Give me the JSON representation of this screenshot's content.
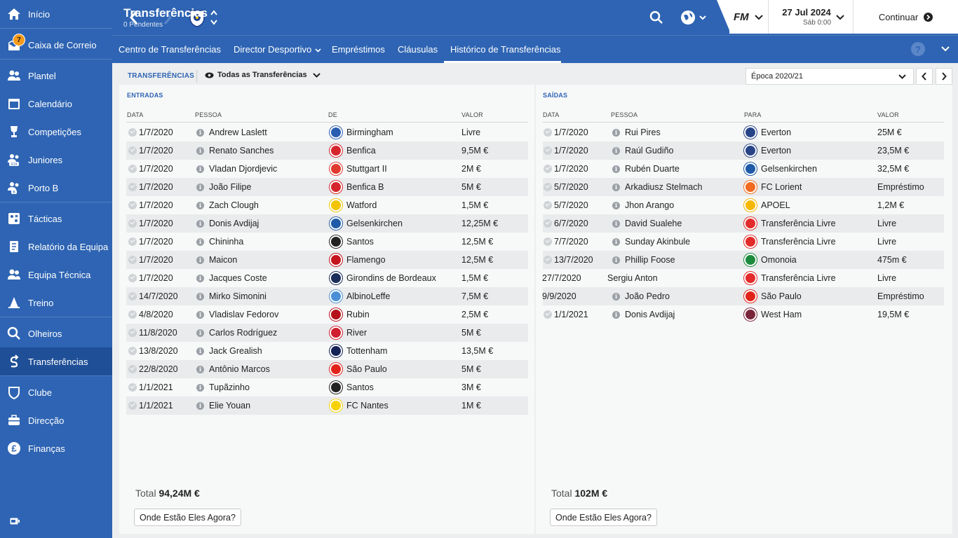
{
  "sidebar": {
    "items": [
      {
        "label": "Início",
        "icon": "home-icon"
      },
      {
        "label": "Caixa de Correio",
        "icon": "inbox-icon",
        "badge": "7"
      },
      {
        "label": "Plantel",
        "icon": "squad-icon"
      },
      {
        "label": "Calendário",
        "icon": "calendar-icon"
      },
      {
        "label": "Competições",
        "icon": "trophy-icon"
      },
      {
        "label": "Juniores",
        "icon": "youth-icon"
      },
      {
        "label": "Porto B",
        "icon": "reserve-team-icon"
      },
      {
        "label": "Tácticas",
        "icon": "tactics-icon"
      },
      {
        "label": "Relatório da Equipa",
        "icon": "report-icon"
      },
      {
        "label": "Equipa Técnica",
        "icon": "staff-icon"
      },
      {
        "label": "Treino",
        "icon": "training-icon"
      },
      {
        "label": "Olheiros",
        "icon": "scouting-icon"
      },
      {
        "label": "Transferências",
        "icon": "transfers-icon",
        "active": true
      },
      {
        "label": "Clube",
        "icon": "club-icon"
      },
      {
        "label": "Direcção",
        "icon": "board-icon"
      },
      {
        "label": "Finanças",
        "icon": "finances-icon"
      }
    ]
  },
  "header": {
    "title": "Transferências",
    "subtitle": "0 Pendentes",
    "fm_logo": "FM",
    "date": "27 Jul 2024",
    "time": "Sáb 0:00",
    "continue_label": "Continuar"
  },
  "tabs": [
    {
      "label": "Centro de Transferências"
    },
    {
      "label": "Director Desportivo"
    },
    {
      "label": "Empréstimos"
    },
    {
      "label": "Cláusulas"
    },
    {
      "label": "Histórico de Transferências",
      "active": true
    }
  ],
  "toolbar": {
    "section_label": "TRANSFERÊNCIAS",
    "filter_label": "Todas as Transferências",
    "season": "Época 2020/21"
  },
  "incoming": {
    "title": "ENTRADAS",
    "columns": [
      "DATA",
      "PESSOA",
      "DE",
      "VALOR"
    ],
    "rows": [
      {
        "date": "1/7/2020",
        "person": "Andrew Laslett",
        "club": "Birmingham",
        "value": "Livre",
        "crest": "#2a5db0"
      },
      {
        "date": "1/7/2020",
        "person": "Renato Sanches",
        "club": "Benfica",
        "value": "9,5M €",
        "crest": "#d6262d"
      },
      {
        "date": "1/7/2020",
        "person": "Vladan Djordjevic",
        "club": "Stuttgart II",
        "value": "2M €",
        "crest": "#e03a2e"
      },
      {
        "date": "1/7/2020",
        "person": "João Filipe",
        "club": "Benfica B",
        "value": "5M €",
        "crest": "#d6262d"
      },
      {
        "date": "1/7/2020",
        "person": "Zach Clough",
        "club": "Watford",
        "value": "1,5M €",
        "crest": "#f2c500"
      },
      {
        "date": "1/7/2020",
        "person": "Donis Avdijaj",
        "club": "Gelsenkirchen",
        "value": "12,25M €",
        "crest": "#1e5aa8"
      },
      {
        "date": "1/7/2020",
        "person": "Chininha",
        "club": "Santos",
        "value": "12,5M €",
        "crest": "#222222"
      },
      {
        "date": "1/7/2020",
        "person": "Maicon",
        "club": "Flamengo",
        "value": "12,5M €",
        "crest": "#c4151c"
      },
      {
        "date": "1/7/2020",
        "person": "Jacques Coste",
        "club": "Girondins de Bordeaux",
        "value": "1,5M €",
        "crest": "#1b2d5a"
      },
      {
        "date": "14/7/2020",
        "person": "Mirko Simonini",
        "club": "AlbinoLeffe",
        "value": "7,5M €",
        "crest": "#4a90d9"
      },
      {
        "date": "4/8/2020",
        "person": "Vladislav Fedorov",
        "club": "Rubin",
        "value": "2,5M €",
        "crest": "#b5121b"
      },
      {
        "date": "11/8/2020",
        "person": "Carlos Rodríguez",
        "club": "River",
        "value": "5M €",
        "crest": "#d01f2e"
      },
      {
        "date": "13/8/2020",
        "person": "Jack Grealish",
        "club": "Tottenham",
        "value": "13,5M €",
        "crest": "#132257"
      },
      {
        "date": "22/8/2020",
        "person": "Antônio Marcos",
        "club": "São Paulo",
        "value": "5M €",
        "crest": "#e2231a"
      },
      {
        "date": "1/1/2021",
        "person": "Tupãzinho",
        "club": "Santos",
        "value": "3M €",
        "crest": "#222222"
      },
      {
        "date": "1/1/2021",
        "person": "Elie Youan",
        "club": "FC Nantes",
        "value": "1M €",
        "crest": "#f7d200"
      }
    ],
    "total_label": "Total",
    "total_value": "94,24M €",
    "where_button": "Onde Estão Eles Agora?"
  },
  "outgoing": {
    "title": "SAÍDAS",
    "columns": [
      "DATA",
      "PESSOA",
      "PARA",
      "VALOR"
    ],
    "rows": [
      {
        "date": "1/7/2020",
        "person": "Rui Pires",
        "club": "Everton",
        "value": "25M €",
        "crest": "#274488",
        "check": true,
        "info": true
      },
      {
        "date": "1/7/2020",
        "person": "Raúl Gudiño",
        "club": "Everton",
        "value": "23,5M €",
        "crest": "#274488",
        "check": true,
        "info": true
      },
      {
        "date": "1/7/2020",
        "person": "Rubén Duarte",
        "club": "Gelsenkirchen",
        "value": "32,5M €",
        "crest": "#1e5aa8",
        "check": true,
        "info": true
      },
      {
        "date": "5/7/2020",
        "person": "Arkadiusz Stelmach",
        "club": "FC Lorient",
        "value": "Empréstimo",
        "crest": "#f26b21",
        "check": true,
        "info": true
      },
      {
        "date": "5/7/2020",
        "person": "Jhon Arango",
        "club": "APOEL",
        "value": "1,2M €",
        "crest": "#f5b800",
        "check": true,
        "info": true
      },
      {
        "date": "6/7/2020",
        "person": "David Sualehe",
        "club": "Transferência Livre",
        "value": "Livre",
        "crest": "#e32b2b",
        "check": true,
        "info": true
      },
      {
        "date": "7/7/2020",
        "person": "Sunday Akinbule",
        "club": "Transferência Livre",
        "value": "Livre",
        "crest": "#e32b2b",
        "check": true,
        "info": true
      },
      {
        "date": "13/7/2020",
        "person": "Phillip Foose",
        "club": "Omonoia",
        "value": "475m €",
        "crest": "#1c8a3c",
        "check": true,
        "info": true
      },
      {
        "date": "27/7/2020",
        "person": "Sergiu Anton",
        "club": "Transferência Livre",
        "value": "Livre",
        "crest": "#e32b2b",
        "check": false,
        "info": false
      },
      {
        "date": "9/9/2020",
        "person": "João Pedro",
        "club": "São Paulo",
        "value": "Empréstimo",
        "crest": "#e2231a",
        "check": false,
        "info": true
      },
      {
        "date": "1/1/2021",
        "person": "Donis Avdijaj",
        "club": "West Ham",
        "value": "19,5M €",
        "crest": "#7a263a",
        "check": true,
        "info": true
      }
    ],
    "total_label": "Total",
    "total_value": "102M €",
    "where_button": "Onde Estão Eles Agora?"
  }
}
